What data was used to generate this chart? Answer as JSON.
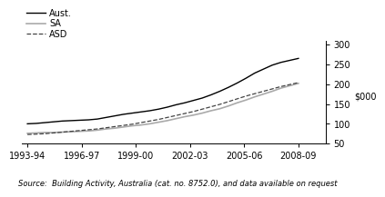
{
  "title": "",
  "ylabel": "$000",
  "source_text": "Source:  Building Activity, Australia (cat. no. 8752.0), and data available on request",
  "x_labels": [
    "1993-94",
    "1996-97",
    "1999-00",
    "2002-03",
    "2005-06",
    "2008-09"
  ],
  "x_tick_pos": [
    0,
    3,
    6,
    9,
    12,
    15
  ],
  "xlim": [
    -0.3,
    16.5
  ],
  "ylim": [
    50,
    310
  ],
  "yticks": [
    50,
    100,
    150,
    200,
    250,
    300
  ],
  "series": {
    "Aust.": {
      "color": "#000000",
      "linestyle": "solid",
      "linewidth": 1.0,
      "values": [
        100,
        101,
        103,
        105,
        107,
        108,
        109,
        110,
        112,
        116,
        120,
        124,
        127,
        130,
        133,
        137,
        142,
        148,
        153,
        159,
        165,
        173,
        182,
        192,
        203,
        215,
        228,
        238,
        248,
        255,
        260,
        265
      ]
    },
    "SA": {
      "color": "#aaaaaa",
      "linestyle": "solid",
      "linewidth": 1.2,
      "values": [
        76,
        77,
        78,
        78,
        79,
        80,
        81,
        82,
        84,
        87,
        89,
        92,
        95,
        97,
        100,
        104,
        108,
        113,
        118,
        122,
        127,
        133,
        138,
        145,
        153,
        160,
        168,
        175,
        182,
        190,
        196,
        202
      ]
    },
    "ASD": {
      "color": "#444444",
      "linestyle": "dashed",
      "linewidth": 0.9,
      "values": [
        73,
        74,
        75,
        77,
        79,
        81,
        83,
        85,
        87,
        90,
        93,
        96,
        99,
        103,
        107,
        111,
        116,
        121,
        126,
        131,
        137,
        143,
        149,
        156,
        163,
        170,
        176,
        182,
        188,
        194,
        199,
        204
      ]
    }
  },
  "legend_order": [
    "Aust.",
    "SA",
    "ASD"
  ],
  "legend_fontsize": 7,
  "tick_fontsize": 7,
  "ylabel_fontsize": 7,
  "source_fontsize": 6
}
